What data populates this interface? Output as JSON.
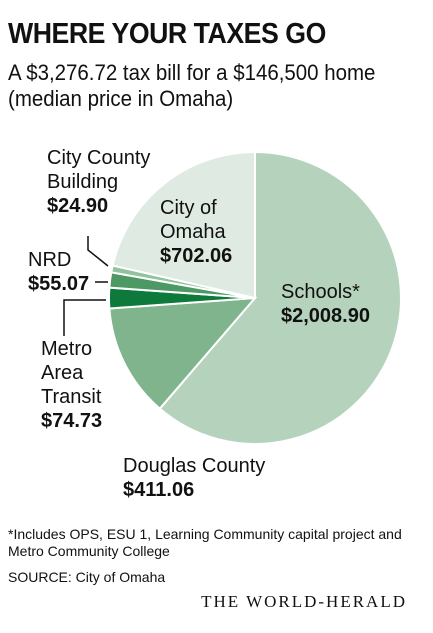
{
  "header": {
    "title": "WHERE YOUR TAXES GO",
    "subtitle": "A $3,276.72 tax bill for a $146,500 home (median price in Omaha)"
  },
  "footer": {
    "footnote": "*Includes OPS, ESU 1, Learning Community capital project and Metro Community College",
    "source": "SOURCE: City of Omaha",
    "brand": "THE WORLD-HERALD"
  },
  "chart_data": {
    "type": "pie",
    "title": "WHERE YOUR TAXES GO",
    "subtitle": "A $3,276.72 tax bill for a $146,500 home (median price in Omaha)",
    "slices": [
      {
        "label": "Schools*",
        "value_label": "$2,008.90",
        "value": 2008.9,
        "color": "#b5d3bc"
      },
      {
        "label": "Douglas County",
        "value_label": "$411.06",
        "value": 411.06,
        "color": "#7fb48d"
      },
      {
        "label": "Metro Area Transit",
        "value_label": "$74.73",
        "value": 74.73,
        "color": "#0d7a3c"
      },
      {
        "label": "NRD",
        "value_label": "$55.07",
        "value": 55.07,
        "color": "#4c9963"
      },
      {
        "label": "City County Building",
        "value_label": "$24.90",
        "value": 24.9,
        "color": "#93c29f"
      },
      {
        "label": "City of Omaha",
        "value_label": "$702.06",
        "value": 702.06,
        "color": "#dfeae2"
      }
    ],
    "total": 3276.72
  }
}
